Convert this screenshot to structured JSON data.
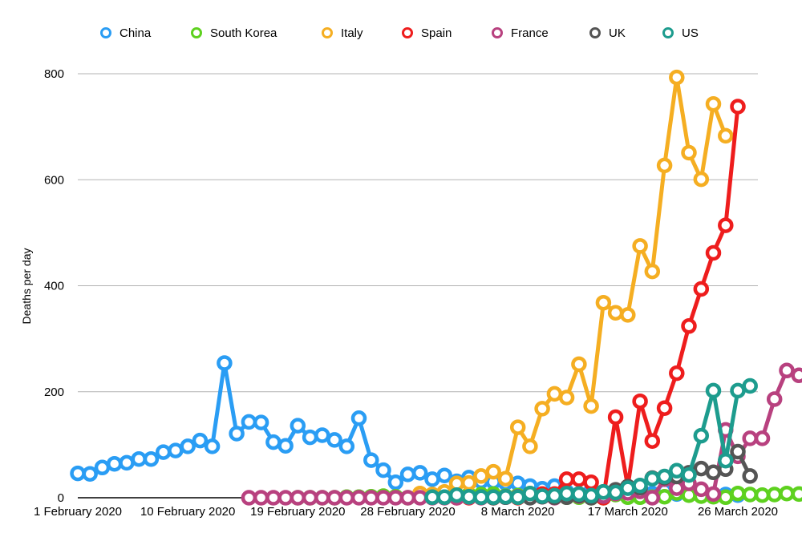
{
  "chart_data": {
    "type": "line",
    "title": "",
    "xlabel": "",
    "ylabel": "Deaths per day",
    "ylim": [
      0,
      800
    ],
    "yticks": [
      0,
      200,
      400,
      600,
      800
    ],
    "x_start": "1 February 2020",
    "x_end": "26 March 2020",
    "xticks": [
      {
        "date": "1 February 2020",
        "label": "1 February 2020"
      },
      {
        "date": "10 February 2020",
        "label": "10 February 2020"
      },
      {
        "date": "19 February 2020",
        "label": "19 February 2020"
      },
      {
        "date": "28 February 2020",
        "label": "28 February 2020"
      },
      {
        "date": "8 March 2020",
        "label": "8 March 2020"
      },
      {
        "date": "17 March 2020",
        "label": "17 March 2020"
      },
      {
        "date": "26 March 2020",
        "label": "26 March 2020"
      }
    ],
    "grid": true,
    "legend": "top",
    "series": [
      {
        "name": "China",
        "color": "#2a9df4",
        "start": "1 February 2020",
        "values": [
          46,
          45,
          57,
          64,
          66,
          73,
          73,
          86,
          89,
          97,
          108,
          97,
          254,
          121,
          143,
          142,
          105,
          98,
          136,
          114,
          118,
          109,
          97,
          150,
          71,
          52,
          29,
          44,
          47,
          35,
          42,
          31,
          38,
          31,
          30,
          28,
          27,
          22,
          17,
          22,
          11,
          7,
          13,
          11,
          13,
          13,
          11,
          8,
          13,
          7,
          9,
          5,
          4,
          6,
          5
        ]
      },
      {
        "name": "South Korea",
        "color": "#5ed11f",
        "start": "19 February 2020",
        "values": [
          0,
          0,
          0,
          0,
          1,
          1,
          2,
          3,
          2,
          0,
          1,
          3,
          2,
          1,
          6,
          6,
          7,
          3,
          4,
          4,
          3,
          1,
          1,
          1,
          0,
          0,
          6,
          1,
          1,
          1,
          2,
          9,
          5,
          3,
          2,
          1,
          8,
          6,
          5,
          6,
          8,
          7,
          5
        ]
      },
      {
        "name": "Italy",
        "color": "#f5ae22",
        "start": "29 February 2020",
        "values": [
          8,
          6,
          11,
          27,
          28,
          41,
          49,
          36,
          133,
          97,
          168,
          196,
          189,
          252,
          173,
          368,
          349,
          345,
          475,
          427,
          627,
          793,
          651,
          601,
          743,
          683
        ]
      },
      {
        "name": "Spain",
        "color": "#ee1d1d",
        "start": "3 March 2020",
        "values": [
          0,
          0,
          1,
          0,
          2,
          0,
          5,
          7,
          7,
          35,
          35,
          29,
          0,
          152,
          21,
          182,
          107,
          169,
          235,
          324,
          394,
          462,
          514,
          738
        ]
      },
      {
        "name": "France",
        "color": "#b8417f",
        "start": "15 February 2020",
        "values": [
          0,
          0,
          0,
          0,
          0,
          0,
          0,
          0,
          0,
          0,
          0,
          0,
          0,
          0,
          0,
          0,
          0,
          0,
          1,
          0,
          1,
          1,
          2,
          3,
          2,
          0,
          2,
          3,
          4,
          3,
          8,
          9,
          12,
          0,
          35,
          18,
          27,
          16,
          7,
          128,
          78,
          112,
          112,
          186,
          240,
          231
        ]
      },
      {
        "name": "UK",
        "color": "#555555",
        "start": "5 March 2020",
        "values": [
          1,
          0,
          1,
          1,
          0,
          2,
          1,
          1,
          4,
          0,
          11,
          15,
          21,
          19,
          37,
          38,
          40,
          47,
          55,
          48,
          54,
          87,
          41
        ]
      },
      {
        "name": "US",
        "color": "#1d9c8e",
        "start": "1 March 2020",
        "values": [
          1,
          1,
          5,
          2,
          1,
          1,
          2,
          1,
          8,
          3,
          4,
          8,
          7,
          4,
          11,
          10,
          18,
          23,
          36,
          40,
          51,
          43,
          117,
          202,
          70,
          202,
          211
        ]
      }
    ]
  }
}
